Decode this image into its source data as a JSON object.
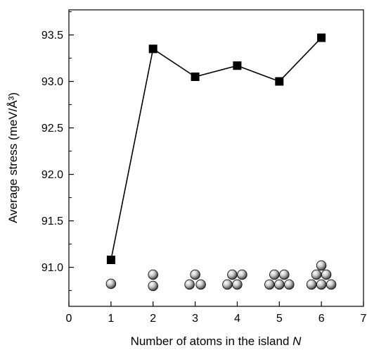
{
  "chart_data": {
    "type": "line",
    "xlabel": "Number of atoms in the island",
    "xlabel_var": "N",
    "ylabel": "Average stress (meV/Å³)",
    "x_ticks": [
      "0",
      "1",
      "2",
      "3",
      "4",
      "5",
      "6",
      "7"
    ],
    "y_ticks": [
      "91.0",
      "91.5",
      "92.0",
      "92.5",
      "93.0",
      "93.5"
    ],
    "xlim": [
      0,
      7
    ],
    "ylim": [
      90.58,
      93.77
    ],
    "grid": false,
    "x": [
      1,
      2,
      3,
      4,
      5,
      6
    ],
    "y": [
      91.08,
      93.35,
      93.05,
      93.17,
      93.0,
      93.47
    ],
    "marker": "square",
    "line_color": "#000000",
    "island_cluster_sizes": [
      1,
      2,
      3,
      4,
      5,
      6
    ]
  }
}
